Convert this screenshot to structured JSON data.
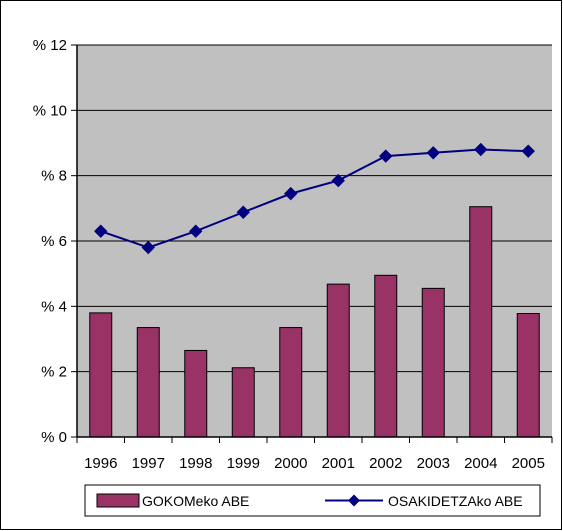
{
  "chart_data": {
    "type": "bar",
    "categories": [
      "1996",
      "1997",
      "1998",
      "1999",
      "2000",
      "2001",
      "2002",
      "2003",
      "2004",
      "2005"
    ],
    "y_ticks": [
      "% 0",
      "% 2",
      "% 4",
      "% 6",
      "% 8",
      "% 10",
      "% 12"
    ],
    "ylim": [
      0,
      12
    ],
    "grid": true,
    "legend_position": "bottom",
    "series": [
      {
        "name": "GOKOMeko ABE",
        "type": "bar",
        "color": "#993366",
        "values": [
          3.8,
          3.35,
          2.65,
          2.12,
          3.35,
          4.68,
          4.95,
          4.55,
          7.05,
          3.78
        ]
      },
      {
        "name": "OSAKIDETZAko ABE",
        "type": "line",
        "marker": "diamond",
        "color": "#000080",
        "values": [
          6.3,
          5.8,
          6.3,
          6.88,
          7.45,
          7.85,
          8.6,
          8.7,
          8.8,
          8.75
        ]
      }
    ],
    "colors": {
      "plot_background": "#c0c0c0",
      "grid": "#000000",
      "bar_outline": "#000000"
    }
  }
}
